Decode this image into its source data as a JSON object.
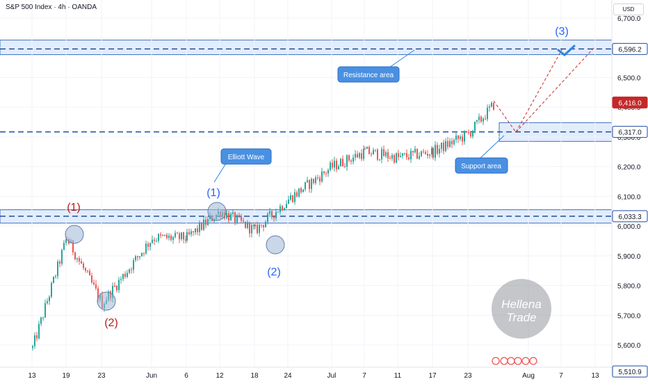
{
  "header": {
    "title": "S&P 500 Index · 4h · OANDA",
    "currency": "USD"
  },
  "chart_data": {
    "type": "candlestick",
    "title": "S&P 500 Index · 4h · OANDA",
    "xlabel": "",
    "ylabel": "",
    "ylim": [
      5490,
      6760
    ],
    "y_ticks": [
      "6,700.0",
      "6,600.0",
      "6,500.0",
      "6,400.0",
      "6,300.0",
      "6,200.0",
      "6,100.0",
      "6,000.0",
      "5,900.0",
      "5,800.0",
      "5,700.0",
      "5,600.0"
    ],
    "x_ticks": [
      "13",
      "19",
      "23",
      "Jun",
      "6",
      "12",
      "18",
      "24",
      "Jul",
      "7",
      "11",
      "17",
      "23",
      "Aug",
      "7",
      "13"
    ],
    "price_waypoints": [
      {
        "label": "13",
        "value": 5590
      },
      {
        "label": "19",
        "value": 5960
      },
      {
        "label": "23",
        "value": 5740
      },
      {
        "label": "Jun",
        "value": 5960
      },
      {
        "label": "6",
        "value": 5960
      },
      {
        "label": "12",
        "value": 6050
      },
      {
        "label": "18",
        "value": 5985
      },
      {
        "label": "24",
        "value": 6090
      },
      {
        "label": "Jul",
        "value": 6200
      },
      {
        "label": "7",
        "value": 6250
      },
      {
        "label": "11",
        "value": 6230
      },
      {
        "label": "17",
        "value": 6250
      },
      {
        "label": "23",
        "value": 6310
      },
      {
        "label": "last",
        "value": 6416
      }
    ],
    "levels": [
      {
        "label": "6,596.2",
        "value": 6596.2
      },
      {
        "label": "6,317.0",
        "value": 6317.0
      },
      {
        "label": "6,033.3",
        "value": 6033.3
      },
      {
        "label": "5,510.9",
        "value": 5510.9
      }
    ],
    "current_price": {
      "label": "6,416.0",
      "value": 6416.0
    },
    "zones": [
      {
        "name": "Resistance area",
        "low": 6577,
        "high": 6626
      },
      {
        "name": "Support area",
        "low": 6285,
        "high": 6348
      },
      {
        "name": "",
        "low": 6010,
        "high": 6055
      }
    ],
    "wave_labels": [
      {
        "text": "(1)",
        "color": "#b71c1c"
      },
      {
        "text": "(2)",
        "color": "#b71c1c"
      },
      {
        "text": "(1)",
        "color": "#2962ff"
      },
      {
        "text": "(2)",
        "color": "#2962ff"
      },
      {
        "text": "(3)",
        "color": "#2962ff"
      }
    ],
    "annotations": [
      "Elliott Wave",
      "Resistance area",
      "Support area"
    ],
    "watermark": "Hellena Trade",
    "colors": {
      "up": "#26a69a",
      "down": "#ef5350",
      "current_price": "#c62828",
      "level": "#1e4ba0",
      "zone_fill": "#dbe8fb",
      "callout": "#4a90e2"
    }
  }
}
